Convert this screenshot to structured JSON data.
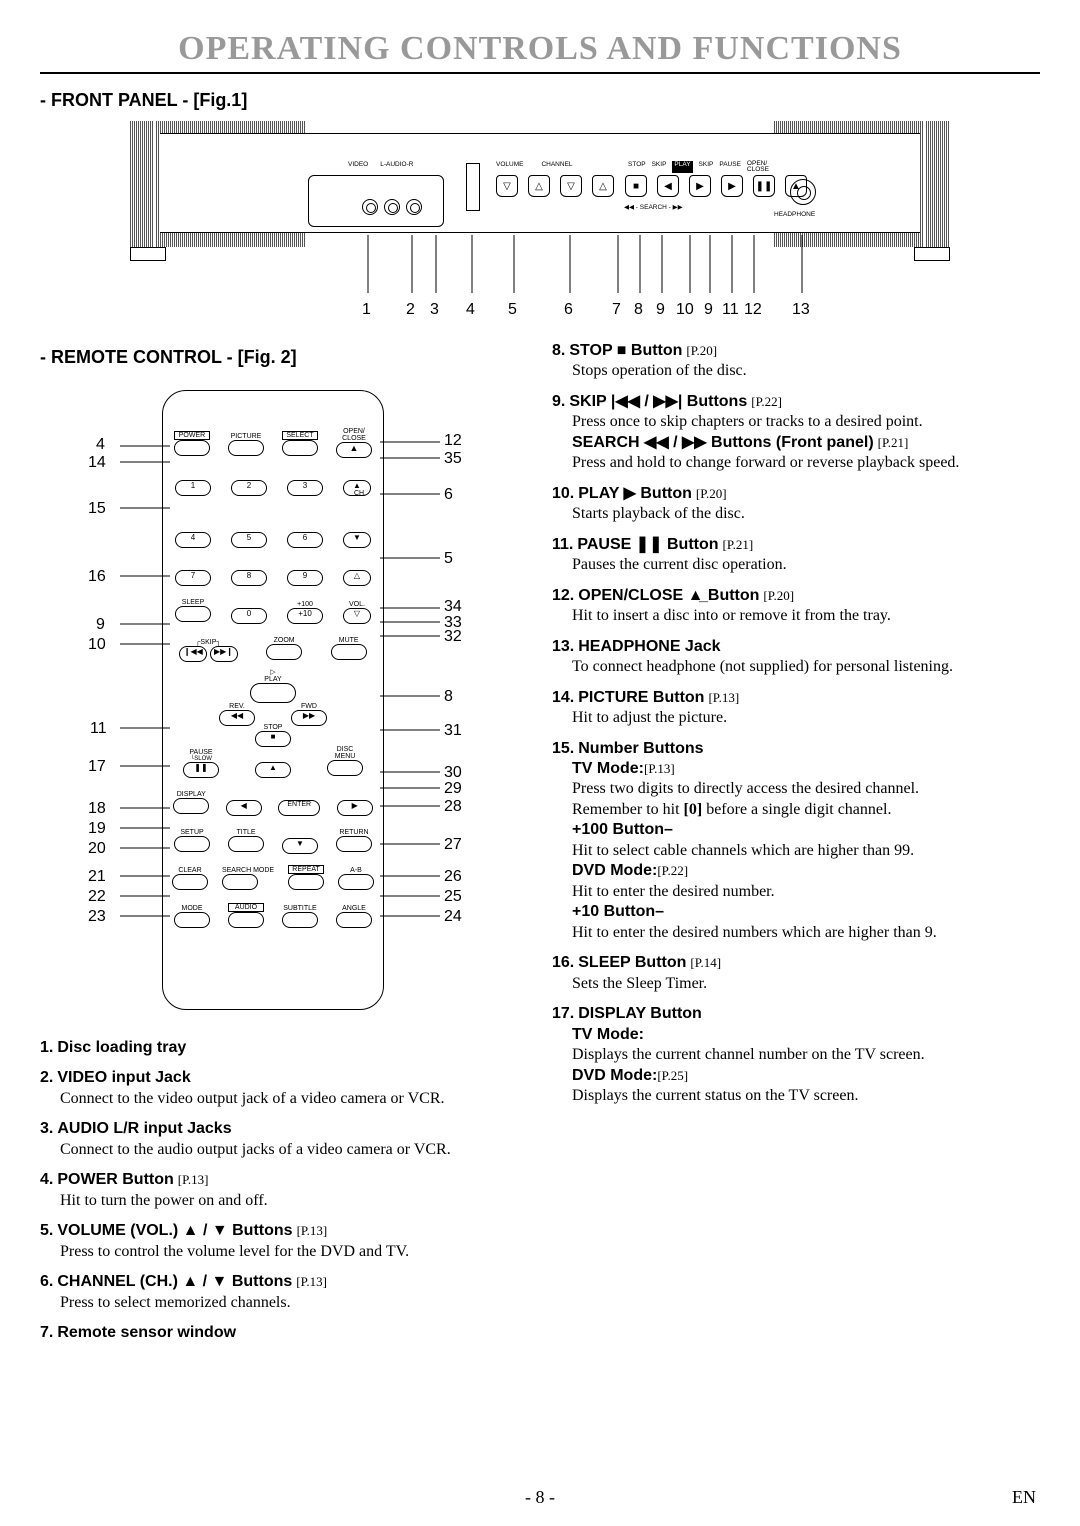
{
  "title": "OPERATING CONTROLS AND FUNCTIONS",
  "sec_front": "- FRONT PANEL - [Fig.1]",
  "sec_remote": "- REMOTE CONTROL - [Fig. 2]",
  "fp_labels": {
    "video": "VIDEO",
    "laudio": "L-AUDIO-R",
    "volume": "VOLUME",
    "channel": "CHANNEL",
    "stop": "STOP",
    "skip": "SKIP",
    "play": "PLAY",
    "skip2": "SKIP",
    "pause": "PAUSE",
    "open": "OPEN/\nCLOSE",
    "search": "◀◀ - SEARCH - ▶▶",
    "headphone": "HEADPHONE"
  },
  "fp_callouts": [
    "1",
    "2",
    "3",
    "4",
    "5",
    "6",
    "7",
    "8",
    "9",
    "10",
    "9",
    "11",
    "12",
    "13"
  ],
  "remote_labels": {
    "power": "POWER",
    "picture": "PICTURE",
    "select": "SELECT",
    "openclose": "OPEN/\nCLOSE",
    "ch": "CH.",
    "sleep": "SLEEP",
    "p100": "+100",
    "vol": "VOL.",
    "p10": "+10",
    "skip": "SKIP",
    "zoom": "ZOOM",
    "mute": "MUTE",
    "play": "PLAY",
    "rev": "REV.",
    "fwd": "FWD",
    "stop": "STOP",
    "pause": "PAUSE",
    "slow": "SLOW",
    "discmenu": "DISC\nMENU",
    "display": "DISPLAY",
    "enter": "ENTER",
    "setup": "SETUP",
    "title": "TITLE",
    "return": "RETURN",
    "clear": "CLEAR",
    "searchmode": "SEARCH MODE",
    "repeat": "REPEAT",
    "ab": "A-B",
    "mode": "MODE",
    "audio": "AUDIO",
    "subtitle": "SUBTITLE",
    "angle": "ANGLE"
  },
  "remote_left_nums": [
    "4",
    "14",
    "15",
    "16",
    "9",
    "10",
    "11",
    "17",
    "18",
    "19",
    "20",
    "21",
    "22",
    "23"
  ],
  "remote_right_nums": [
    "12",
    "35",
    "6",
    "5",
    "34",
    "33",
    "32",
    "8",
    "31",
    "30",
    "29",
    "28",
    "27",
    "26",
    "25",
    "24"
  ],
  "items_left": [
    {
      "n": "1.",
      "t": "Disc loading tray"
    },
    {
      "n": "2.",
      "t": "VIDEO input Jack",
      "b": "Connect to the video output jack of a video camera or VCR."
    },
    {
      "n": "3.",
      "t": "AUDIO L/R input Jacks",
      "b": "Connect to the audio output jacks of a video camera or VCR."
    },
    {
      "n": "4.",
      "t": "POWER Button",
      "pg": "[P.13]",
      "b": "Hit to turn the power on and off."
    },
    {
      "n": "5.",
      "t": "VOLUME (VOL.) ▲ / ▼ Buttons",
      "pg": "[P.13]",
      "b": "Press to control the volume level for the DVD and TV."
    },
    {
      "n": "6.",
      "t": "CHANNEL (CH.) ▲ / ▼ Buttons",
      "pg": "[P.13]",
      "b": "Press to select memorized channels."
    },
    {
      "n": "7.",
      "t": "Remote sensor window"
    }
  ],
  "items_right": [
    {
      "n": "8.",
      "t": "STOP ■ Button",
      "pg": "[P.20]",
      "b": "Stops operation of the disc."
    },
    {
      "n": "9.",
      "t": "SKIP |◀◀ / ▶▶| Buttons",
      "pg": "[P.22]",
      "b": "Press once to skip chapters or tracks to a desired point.",
      "sub": [
        {
          "st": "SEARCH ◀◀ / ▶▶ Buttons (Front panel)",
          "spg": "[P.21]",
          "sb": "Press and hold to change forward or reverse playback speed."
        }
      ]
    },
    {
      "n": "10.",
      "t": "PLAY ▶ Button",
      "pg": "[P.20]",
      "b": "Starts playback of the disc."
    },
    {
      "n": "11.",
      "t": "PAUSE ❚❚ Button",
      "pg": "[P.21]",
      "b": "Pauses the current disc operation."
    },
    {
      "n": "12.",
      "t": "OPEN/CLOSE ▲̲ Button",
      "pg": "[P.20]",
      "b": "Hit to insert a disc into or remove it from the tray."
    },
    {
      "n": "13.",
      "t": "HEADPHONE Jack",
      "b": "To connect headphone (not supplied) for personal listening."
    },
    {
      "n": "14.",
      "t": "PICTURE Button",
      "pg": "[P.13]",
      "b": "Hit to adjust the picture."
    },
    {
      "n": "15.",
      "t": "Number Buttons",
      "groups": [
        {
          "gt": "TV Mode:",
          "gpg": "[P.13]",
          "gb": [
            "Press two digits to directly access the desired channel.",
            "Remember to hit [0] before a single digit channel."
          ]
        },
        {
          "gt": "+100 Button–",
          "gb": [
            "Hit to select cable channels which are higher than 99."
          ]
        },
        {
          "gt": "DVD Mode:",
          "gpg": "[P.22]",
          "gb": [
            "Hit to enter the desired number."
          ]
        },
        {
          "gt": "+10 Button–",
          "gb": [
            "Hit to enter the desired numbers which are higher than 9."
          ]
        }
      ]
    },
    {
      "n": "16.",
      "t": "SLEEP Button",
      "pg": "[P.14]",
      "b": "Sets the Sleep Timer."
    },
    {
      "n": "17.",
      "t": "DISPLAY Button",
      "groups": [
        {
          "gt": "TV Mode:",
          "gb": [
            "Displays the current channel number on the TV screen."
          ]
        },
        {
          "gt": "DVD Mode:",
          "gpg": "[P.25]",
          "gb": [
            "Displays the current status on the TV screen."
          ]
        }
      ]
    }
  ],
  "footer": {
    "page": "- 8 -",
    "lang": "EN"
  }
}
